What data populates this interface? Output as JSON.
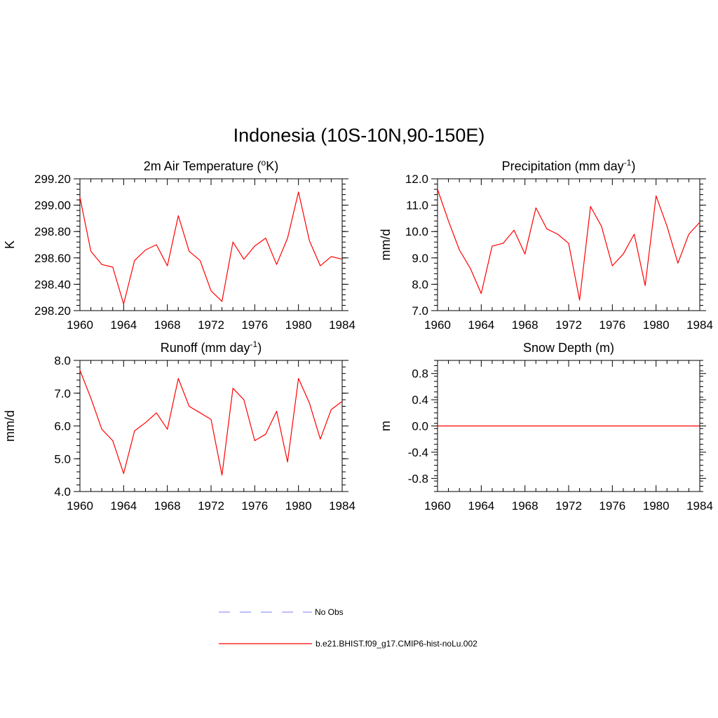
{
  "title": "Indonesia (10S-10N,90-150E)",
  "colors": {
    "model": "#ff0000",
    "obs": "#9999ff",
    "axis": "#000000"
  },
  "legend": [
    {
      "label": "No Obs",
      "style": "dashed",
      "color": "#9999ff"
    },
    {
      "label": "b.e21.BHIST.f09_g17.CMIP6-hist-noLu.002",
      "style": "solid",
      "color": "#ff0000"
    }
  ],
  "chart_data": [
    {
      "type": "line",
      "title": "2m Air Temperature",
      "title_unit": "K",
      "title_unit_prefix": "o",
      "ylabel": "K",
      "xlim": [
        1960,
        1984
      ],
      "ylim": [
        298.2,
        299.2
      ],
      "xticks": [
        "1960",
        "1964",
        "1968",
        "1972",
        "1976",
        "1980",
        "1984"
      ],
      "yticks": [
        "298.20",
        "298.40",
        "298.60",
        "298.80",
        "299.00",
        "299.20"
      ],
      "x": [
        1960,
        1961,
        1962,
        1963,
        1964,
        1965,
        1966,
        1967,
        1968,
        1969,
        1970,
        1971,
        1972,
        1973,
        1974,
        1975,
        1976,
        1977,
        1978,
        1979,
        1980,
        1981,
        1982,
        1983,
        1984
      ],
      "series": [
        {
          "name": "b.e21.BHIST.f09_g17.CMIP6-hist-noLu.002",
          "values": [
            299.06,
            298.65,
            298.55,
            298.53,
            298.25,
            298.58,
            298.66,
            298.7,
            298.54,
            298.92,
            298.65,
            298.58,
            298.35,
            298.27,
            298.72,
            298.59,
            298.69,
            298.75,
            298.55,
            298.75,
            299.1,
            298.73,
            298.54,
            298.61,
            298.59
          ]
        }
      ]
    },
    {
      "type": "line",
      "title": "Precipitation (mm day",
      "title_sup": "-1",
      "title_end": ")",
      "ylabel": "mm/d",
      "xlim": [
        1960,
        1984
      ],
      "ylim": [
        7.0,
        12.0
      ],
      "xticks": [
        "1960",
        "1964",
        "1968",
        "1972",
        "1976",
        "1980",
        "1984"
      ],
      "yticks": [
        "7.0",
        "8.0",
        "9.0",
        "10.0",
        "11.0",
        "12.0"
      ],
      "x": [
        1960,
        1961,
        1962,
        1963,
        1964,
        1965,
        1966,
        1967,
        1968,
        1969,
        1970,
        1971,
        1972,
        1973,
        1974,
        1975,
        1976,
        1977,
        1978,
        1979,
        1980,
        1981,
        1982,
        1983,
        1984
      ],
      "series": [
        {
          "name": "b.e21.BHIST.f09_g17.CMIP6-hist-noLu.002",
          "values": [
            11.6,
            10.4,
            9.3,
            8.6,
            7.65,
            9.45,
            9.55,
            10.05,
            9.15,
            10.9,
            10.1,
            9.9,
            9.55,
            7.4,
            10.95,
            10.2,
            8.7,
            9.15,
            9.9,
            7.95,
            11.35,
            10.2,
            8.8,
            9.9,
            10.35
          ]
        }
      ]
    },
    {
      "type": "line",
      "title": "Runoff (mm day",
      "title_sup": "-1",
      "title_end": ")",
      "ylabel": "mm/d",
      "xlim": [
        1960,
        1984
      ],
      "ylim": [
        4.0,
        8.0
      ],
      "xticks": [
        "1960",
        "1964",
        "1968",
        "1972",
        "1976",
        "1980",
        "1984"
      ],
      "yticks": [
        "4.0",
        "5.0",
        "6.0",
        "7.0",
        "8.0"
      ],
      "x": [
        1960,
        1961,
        1962,
        1963,
        1964,
        1965,
        1966,
        1967,
        1968,
        1969,
        1970,
        1971,
        1972,
        1973,
        1974,
        1975,
        1976,
        1977,
        1978,
        1979,
        1980,
        1981,
        1982,
        1983,
        1984
      ],
      "series": [
        {
          "name": "b.e21.BHIST.f09_g17.CMIP6-hist-noLu.002",
          "values": [
            7.7,
            6.85,
            5.9,
            5.55,
            4.55,
            5.85,
            6.1,
            6.4,
            5.9,
            7.45,
            6.6,
            6.4,
            6.2,
            4.5,
            7.15,
            6.8,
            5.55,
            5.75,
            6.45,
            4.9,
            7.45,
            6.7,
            5.6,
            6.5,
            6.75
          ]
        }
      ]
    },
    {
      "type": "line",
      "title": "Snow Depth (m)",
      "ylabel": "m",
      "xlim": [
        1960,
        1984
      ],
      "ylim": [
        -1.0,
        1.0
      ],
      "xticks": [
        "1960",
        "1964",
        "1968",
        "1972",
        "1976",
        "1980",
        "1984"
      ],
      "yticks": [
        "-0.8",
        "-0.4",
        "0.0",
        "0.4",
        "0.8"
      ],
      "ytick_values": [
        -0.8,
        -0.4,
        0.0,
        0.4,
        0.8
      ],
      "x": [
        1960,
        1961,
        1962,
        1963,
        1964,
        1965,
        1966,
        1967,
        1968,
        1969,
        1970,
        1971,
        1972,
        1973,
        1974,
        1975,
        1976,
        1977,
        1978,
        1979,
        1980,
        1981,
        1982,
        1983,
        1984
      ],
      "series": [
        {
          "name": "b.e21.BHIST.f09_g17.CMIP6-hist-noLu.002",
          "values": [
            0,
            0,
            0,
            0,
            0,
            0,
            0,
            0,
            0,
            0,
            0,
            0,
            0,
            0,
            0,
            0,
            0,
            0,
            0,
            0,
            0,
            0,
            0,
            0,
            0
          ]
        }
      ]
    }
  ]
}
